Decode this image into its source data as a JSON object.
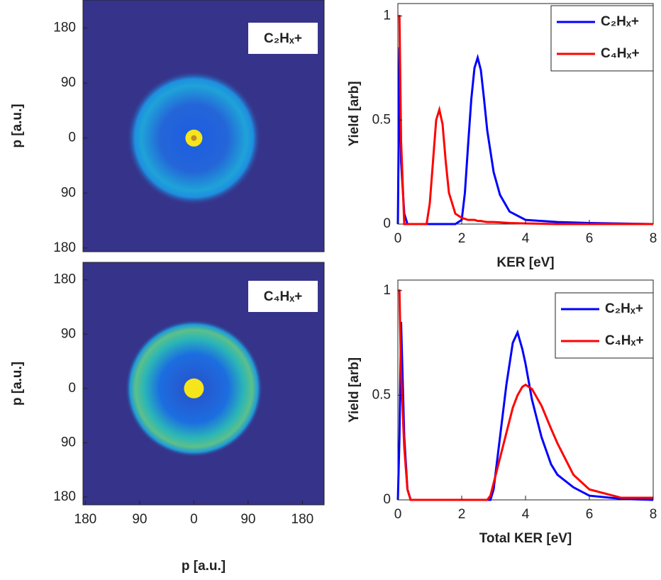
{
  "chart_data": [
    {
      "type": "image",
      "label": "C₂Hₓ+",
      "ylabel": "p [a.u.]",
      "xlim": [
        -184,
        216
      ],
      "ylim": [
        -186,
        226
      ],
      "yticks": [
        {
          "value": -180,
          "label": "180"
        },
        {
          "value": -90,
          "label": "90"
        },
        0,
        90,
        180
      ]
    },
    {
      "type": "image",
      "label": "C₄Hₓ+",
      "ylabel": "p [a.u.]",
      "xlabel": "p [a.u.]",
      "xlim": [
        -184,
        216
      ],
      "ylim": [
        -193,
        209
      ],
      "yticks": [
        {
          "value": -180,
          "label": "180"
        },
        {
          "value": -90,
          "label": "90"
        },
        0,
        90,
        180
      ],
      "xticks": [
        {
          "value": -180,
          "label": "180"
        },
        {
          "value": -90,
          "label": "90"
        },
        0,
        90,
        180
      ]
    },
    {
      "type": "line",
      "xlabel": "KER [eV]",
      "ylabel": "Yield [arb]",
      "xlim": [
        0,
        8
      ],
      "ylim": [
        0,
        1.06
      ],
      "xticks": [
        0,
        2,
        4,
        6,
        8
      ],
      "yticks": [
        0,
        0.5,
        1
      ],
      "legend": "upper right",
      "x": [
        0,
        0.05,
        0.1,
        0.2,
        0.3,
        0.5,
        0.8,
        0.9,
        1.0,
        1.1,
        1.2,
        1.3,
        1.4,
        1.5,
        1.6,
        1.8,
        2.0,
        2.1,
        2.2,
        2.3,
        2.4,
        2.5,
        2.6,
        2.7,
        2.8,
        3.0,
        3.2,
        3.5,
        4.0,
        5.0,
        6.0,
        8.0
      ],
      "series": [
        {
          "name": "C₂Hₓ+",
          "color": "#0000ff",
          "values": [
            0,
            0.85,
            0.3,
            0.05,
            0,
            0,
            0,
            0,
            0,
            0,
            0,
            0,
            0,
            0,
            0,
            0,
            0.02,
            0.15,
            0.38,
            0.6,
            0.75,
            0.8,
            0.74,
            0.6,
            0.45,
            0.25,
            0.14,
            0.06,
            0.02,
            0.01,
            0.005,
            0
          ]
        },
        {
          "name": "C₄Hₓ+",
          "color": "#ff0000",
          "values": [
            1,
            1,
            0.4,
            0,
            0,
            0,
            0,
            0,
            0.1,
            0.3,
            0.5,
            0.55,
            0.48,
            0.3,
            0.15,
            0.05,
            0.03,
            0.025,
            0.02,
            0.02,
            0.02,
            0.015,
            0.015,
            0.012,
            0.01,
            0.01,
            0.008,
            0.005,
            0.003,
            0,
            0,
            0
          ]
        }
      ]
    },
    {
      "type": "line",
      "xlabel": "Total KER [eV]",
      "ylabel": "Yield [arb]",
      "xlim": [
        0,
        8
      ],
      "ylim": [
        0,
        1.05
      ],
      "xticks": [
        0,
        2,
        4,
        6,
        8
      ],
      "yticks": [
        0,
        0.5,
        1
      ],
      "legend": "upper right",
      "x": [
        0,
        0.05,
        0.1,
        0.2,
        0.3,
        0.4,
        0.5,
        2.8,
        2.9,
        3.0,
        3.2,
        3.4,
        3.6,
        3.75,
        3.9,
        4.0,
        4.2,
        4.5,
        4.8,
        5.0,
        5.5,
        6.0,
        7.0,
        8.0
      ],
      "series": [
        {
          "name": "C₂Hₓ+",
          "color": "#0000ff",
          "values": [
            0,
            0.3,
            0.85,
            0.3,
            0.05,
            0,
            0,
            0,
            0,
            0.05,
            0.3,
            0.55,
            0.75,
            0.8,
            0.72,
            0.65,
            0.48,
            0.3,
            0.17,
            0.12,
            0.06,
            0.02,
            0.005,
            0
          ]
        },
        {
          "name": "C₄Hₓ+",
          "color": "#ff0000",
          "values": [
            1,
            1,
            0.6,
            0.25,
            0.05,
            0,
            0,
            0,
            0.02,
            0.08,
            0.2,
            0.32,
            0.44,
            0.5,
            0.54,
            0.55,
            0.53,
            0.45,
            0.34,
            0.27,
            0.12,
            0.05,
            0.01,
            0.01
          ]
        }
      ]
    }
  ]
}
